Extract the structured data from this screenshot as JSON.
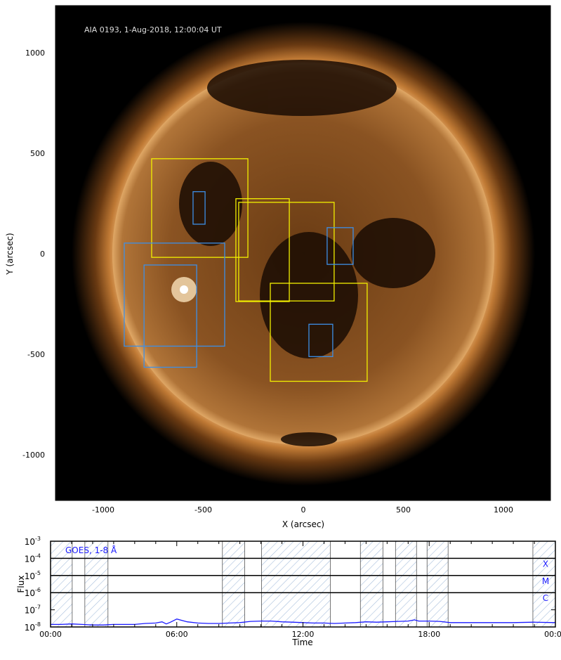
{
  "chart_data": [
    {
      "type": "image",
      "title": "AIA 0193, 1-Aug-2018, 12:00:04 UT",
      "xlabel": "X (arcsec)",
      "ylabel": "Y (arcsec)",
      "xlim": [
        -1250,
        1250
      ],
      "ylim": [
        -1230,
        1230
      ],
      "xticks": [
        -1000,
        -500,
        0,
        500,
        1000
      ],
      "yticks": [
        -1000,
        -500,
        0,
        500,
        1000
      ],
      "colors": {
        "yellow_box": "#f2f000",
        "blue_box": "#3d8fe6"
      },
      "boxes": [
        {
          "color": "yellow",
          "x": [
            -758,
            -277
          ],
          "y": [
            -18,
            473
          ]
        },
        {
          "color": "yellow",
          "x": [
            -337,
            -70
          ],
          "y": [
            -238,
            274
          ]
        },
        {
          "color": "yellow",
          "x": [
            -323,
            154
          ],
          "y": [
            -235,
            256
          ]
        },
        {
          "color": "yellow",
          "x": [
            -165,
            319
          ],
          "y": [
            -635,
            -147
          ]
        },
        {
          "color": "blue",
          "x": [
            -551,
            -491
          ],
          "y": [
            147,
            309
          ]
        },
        {
          "color": "blue",
          "x": [
            -895,
            -393
          ],
          "y": [
            -460,
            53
          ]
        },
        {
          "color": "blue",
          "x": [
            -796,
            -533
          ],
          "y": [
            -565,
            -56
          ]
        },
        {
          "color": "blue",
          "x": [
            119,
            249
          ],
          "y": [
            -53,
            130
          ]
        },
        {
          "color": "blue",
          "x": [
            28,
            147
          ],
          "y": [
            -512,
            -351
          ]
        }
      ]
    },
    {
      "type": "line",
      "legend": "GOES, 1-8 Å",
      "xlabel": "Time",
      "ylabel": "Flux",
      "xlim_hours": [
        0,
        24
      ],
      "xtick_labels": [
        "00:00",
        "06:00",
        "12:00",
        "18:00",
        "00:00"
      ],
      "ytick_labels": [
        [
          "10",
          "-3"
        ],
        [
          "10",
          "-4"
        ],
        [
          "10",
          "-5"
        ],
        [
          "10",
          "-6"
        ],
        [
          "10",
          "-7"
        ],
        [
          "10",
          "-8"
        ]
      ],
      "ylim": [
        1e-08,
        0.001
      ],
      "yscale": "log",
      "class_labels": [
        {
          "label": "X",
          "level": 0.0001
        },
        {
          "label": "M",
          "level": 1e-05
        },
        {
          "label": "C",
          "level": 1e-06
        }
      ],
      "hatched_intervals_hours": [
        [
          0,
          1.03
        ],
        [
          1.63,
          2.73
        ],
        [
          8.17,
          9.23
        ],
        [
          10.03,
          13.3
        ],
        [
          14.73,
          15.8
        ],
        [
          16.4,
          17.4
        ],
        [
          17.9,
          18.9
        ],
        [
          22.93,
          24
        ]
      ],
      "line_color": "#1a1aff",
      "series": [
        {
          "x": [
            0,
            0.5,
            1,
            1.5,
            2,
            2.5,
            3,
            3.5,
            4,
            4.5,
            5,
            5.3,
            5.5,
            5.7,
            6,
            6.5,
            7,
            7.5,
            8,
            8.5,
            9,
            9.5,
            10,
            10.5,
            11,
            11.5,
            12,
            12.5,
            13,
            13.5,
            14,
            14.5,
            15,
            15.5,
            16,
            16.5,
            17,
            17.3,
            17.5,
            18,
            18.5,
            19,
            19.5,
            20,
            21,
            22,
            23,
            24
          ],
          "y": [
            1.4e-08,
            1.4e-08,
            1.5e-08,
            1.4e-08,
            1.3e-08,
            1.3e-08,
            1.4e-08,
            1.4e-08,
            1.4e-08,
            1.6e-08,
            1.7e-08,
            2e-08,
            1.5e-08,
            1.9e-08,
            2.9e-08,
            2e-08,
            1.7e-08,
            1.6e-08,
            1.6e-08,
            1.7e-08,
            1.8e-08,
            2.1e-08,
            2.2e-08,
            2.2e-08,
            2e-08,
            1.9e-08,
            1.8e-08,
            1.7e-08,
            1.7e-08,
            1.6e-08,
            1.7e-08,
            1.8e-08,
            2e-08,
            1.9e-08,
            2e-08,
            2.1e-08,
            2.2e-08,
            2.6e-08,
            2.2e-08,
            2.2e-08,
            2.1e-08,
            1.8e-08,
            1.8e-08,
            1.8e-08,
            1.8e-08,
            1.8e-08,
            1.9e-08,
            1.8e-08
          ]
        }
      ]
    }
  ]
}
